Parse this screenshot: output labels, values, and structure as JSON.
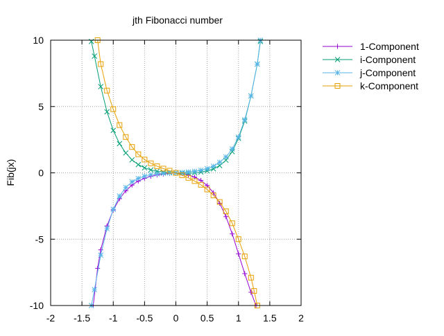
{
  "chart_data": {
    "type": "line",
    "title": "jth Fibonacci number",
    "xlabel": "",
    "ylabel": "Fib(jx)",
    "xlim": [
      -2,
      2
    ],
    "ylim": [
      -10,
      10
    ],
    "xticks": [
      -2,
      -1.5,
      -1,
      -0.5,
      0,
      0.5,
      1,
      1.5,
      2
    ],
    "xtick_labels": [
      "-2",
      "-1.5",
      "-1",
      "-0.5",
      "0",
      "0.5",
      "1",
      "1.5",
      "2"
    ],
    "yticks": [
      -10,
      -5,
      0,
      5,
      10
    ],
    "ytick_labels": [
      "-10",
      "-5",
      "0",
      "5",
      "10"
    ],
    "grid": true,
    "legend_position": "outside-top-right",
    "series": [
      {
        "name": "1-Component",
        "color": "#9400d3",
        "marker": "plus",
        "x": [
          -1.32,
          -1.25,
          -1.2,
          -1.1,
          -1.0,
          -0.9,
          -0.8,
          -0.7,
          -0.6,
          -0.5,
          -0.4,
          -0.3,
          -0.2,
          -0.1,
          0.0,
          0.1,
          0.2,
          0.3,
          0.4,
          0.5,
          0.6,
          0.7,
          0.8,
          0.9,
          1.0,
          1.1,
          1.2,
          1.28
        ],
        "y": [
          -10.0,
          -7.2,
          -5.8,
          -4.0,
          -2.8,
          -1.95,
          -1.35,
          -0.92,
          -0.62,
          -0.41,
          -0.26,
          -0.16,
          -0.09,
          -0.04,
          0.0,
          -0.06,
          -0.16,
          -0.32,
          -0.57,
          -0.95,
          -1.5,
          -2.3,
          -3.3,
          -4.6,
          -6.1,
          -7.6,
          -9.0,
          -10.0
        ]
      },
      {
        "name": "i-Component",
        "color": "#009e73",
        "marker": "cross",
        "x": [
          -1.35,
          -1.3,
          -1.2,
          -1.1,
          -1.0,
          -0.9,
          -0.8,
          -0.7,
          -0.6,
          -0.5,
          -0.4,
          -0.3,
          -0.2,
          -0.1,
          0.0,
          0.1,
          0.2,
          0.3,
          0.4,
          0.5,
          0.6,
          0.7,
          0.8,
          0.9,
          1.0,
          1.1,
          1.2,
          1.3,
          1.35
        ],
        "y": [
          9.9,
          8.8,
          6.5,
          4.6,
          3.2,
          2.2,
          1.5,
          0.98,
          0.62,
          0.38,
          0.22,
          0.12,
          0.06,
          0.02,
          0.0,
          -0.02,
          -0.03,
          0.0,
          0.06,
          0.15,
          0.3,
          0.55,
          0.95,
          1.6,
          2.6,
          3.9,
          5.8,
          8.2,
          9.9
        ]
      },
      {
        "name": "j-Component",
        "color": "#56b4e9",
        "marker": "star",
        "x": [
          -1.35,
          -1.3,
          -1.2,
          -1.1,
          -1.0,
          -0.9,
          -0.8,
          -0.7,
          -0.6,
          -0.5,
          -0.4,
          -0.3,
          -0.2,
          -0.1,
          0.0,
          0.1,
          0.2,
          0.3,
          0.4,
          0.5,
          0.6,
          0.7,
          0.8,
          0.9,
          1.0,
          1.1,
          1.2,
          1.3,
          1.35
        ],
        "y": [
          -10.0,
          -8.8,
          -6.2,
          -4.2,
          -2.75,
          -1.75,
          -1.1,
          -0.68,
          -0.42,
          -0.25,
          -0.14,
          -0.08,
          -0.04,
          -0.01,
          0.0,
          0.03,
          0.07,
          0.12,
          0.2,
          0.32,
          0.5,
          0.8,
          1.2,
          1.8,
          2.7,
          4.0,
          5.8,
          8.2,
          10.0
        ]
      },
      {
        "name": "k-Component",
        "color": "#e69f00",
        "marker": "square",
        "x": [
          -1.25,
          -1.2,
          -1.1,
          -1.0,
          -0.9,
          -0.8,
          -0.7,
          -0.6,
          -0.5,
          -0.4,
          -0.3,
          -0.2,
          -0.1,
          0.0,
          0.1,
          0.2,
          0.3,
          0.4,
          0.5,
          0.6,
          0.7,
          0.8,
          0.9,
          1.0,
          1.1,
          1.2,
          1.25,
          1.3
        ],
        "y": [
          10.0,
          8.2,
          6.2,
          4.8,
          3.6,
          2.7,
          1.95,
          1.4,
          1.0,
          0.72,
          0.5,
          0.32,
          0.16,
          0.0,
          -0.18,
          -0.38,
          -0.62,
          -0.9,
          -1.25,
          -1.7,
          -2.2,
          -2.9,
          -3.8,
          -5.0,
          -6.3,
          -7.9,
          -8.9,
          -10.0
        ]
      }
    ]
  }
}
